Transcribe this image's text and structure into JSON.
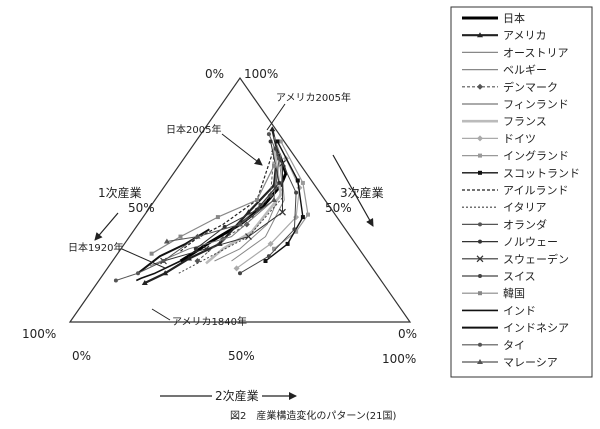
{
  "chart_data": {
    "type": "scatter",
    "subtype": "ternary",
    "caption": "図2　産業構造変化のパターン(21国)",
    "axes": {
      "primary": {
        "label": "1次産業",
        "tick_labels": [
          "0%",
          "50%",
          "100%"
        ]
      },
      "secondary": {
        "label": "2次産業",
        "tick_labels": [
          "0%",
          "50%",
          "100%"
        ]
      },
      "tertiary": {
        "label": "3次産業",
        "tick_labels": [
          "0%",
          "50%",
          "100%"
        ]
      }
    },
    "legend": {
      "placement": "right",
      "entries": [
        "日本",
        "アメリカ",
        "オーストリア",
        "ベルギー",
        "デンマーク",
        "フィンランド",
        "フランス",
        "ドイツ",
        "イングランド",
        "スコットランド",
        "アイルランド",
        "イタリア",
        "オランダ",
        "ノルウェー",
        "スウェーデン",
        "スイス",
        "韓国",
        "インド",
        "インドネシア",
        "タイ",
        "マレーシア"
      ]
    },
    "annotations": [
      {
        "text": "アメリカ2005年",
        "primary": 0.01,
        "secondary": 0.2,
        "tertiary": 0.79
      },
      {
        "text": "日本2005年",
        "primary": 0.04,
        "secondary": 0.27,
        "tertiary": 0.69
      },
      {
        "text": "日本1920年",
        "primary": 0.55,
        "secondary": 0.2,
        "tertiary": 0.25
      },
      {
        "text": "アメリカ1840年",
        "primary": 0.7,
        "secondary": 0.14,
        "tertiary": 0.16
      }
    ],
    "series": [
      {
        "name": "日本",
        "points": [
          [
            0.55,
            0.2,
            0.25
          ],
          [
            0.5,
            0.22,
            0.28
          ],
          [
            0.42,
            0.25,
            0.33
          ],
          [
            0.3,
            0.3,
            0.4
          ],
          [
            0.2,
            0.33,
            0.47
          ],
          [
            0.1,
            0.34,
            0.56
          ],
          [
            0.06,
            0.33,
            0.61
          ],
          [
            0.04,
            0.27,
            0.69
          ]
        ]
      },
      {
        "name": "アメリカ",
        "points": [
          [
            0.7,
            0.14,
            0.16
          ],
          [
            0.62,
            0.18,
            0.2
          ],
          [
            0.52,
            0.22,
            0.26
          ],
          [
            0.4,
            0.28,
            0.32
          ],
          [
            0.25,
            0.3,
            0.45
          ],
          [
            0.12,
            0.32,
            0.56
          ],
          [
            0.04,
            0.26,
            0.7
          ],
          [
            0.01,
            0.2,
            0.79
          ]
        ]
      },
      {
        "name": "オーストリア",
        "points": [
          [
            0.45,
            0.3,
            0.25
          ],
          [
            0.35,
            0.35,
            0.3
          ],
          [
            0.22,
            0.38,
            0.4
          ],
          [
            0.1,
            0.35,
            0.55
          ],
          [
            0.05,
            0.28,
            0.67
          ]
        ]
      },
      {
        "name": "ベルギー",
        "points": [
          [
            0.4,
            0.35,
            0.25
          ],
          [
            0.25,
            0.4,
            0.35
          ],
          [
            0.12,
            0.38,
            0.5
          ],
          [
            0.04,
            0.28,
            0.68
          ],
          [
            0.02,
            0.22,
            0.76
          ]
        ]
      },
      {
        "name": "デンマーク",
        "points": [
          [
            0.5,
            0.25,
            0.25
          ],
          [
            0.38,
            0.28,
            0.34
          ],
          [
            0.28,
            0.32,
            0.4
          ],
          [
            0.15,
            0.33,
            0.52
          ],
          [
            0.05,
            0.25,
            0.7
          ]
        ]
      },
      {
        "name": "フィンランド",
        "points": [
          [
            0.65,
            0.12,
            0.23
          ],
          [
            0.5,
            0.2,
            0.3
          ],
          [
            0.35,
            0.3,
            0.35
          ],
          [
            0.15,
            0.35,
            0.5
          ],
          [
            0.05,
            0.27,
            0.68
          ]
        ]
      },
      {
        "name": "フランス",
        "points": [
          [
            0.48,
            0.28,
            0.24
          ],
          [
            0.4,
            0.3,
            0.3
          ],
          [
            0.28,
            0.35,
            0.37
          ],
          [
            0.12,
            0.36,
            0.52
          ],
          [
            0.04,
            0.24,
            0.72
          ]
        ]
      },
      {
        "name": "ドイツ",
        "points": [
          [
            0.4,
            0.38,
            0.22
          ],
          [
            0.25,
            0.43,
            0.32
          ],
          [
            0.12,
            0.45,
            0.43
          ],
          [
            0.05,
            0.4,
            0.55
          ],
          [
            0.03,
            0.3,
            0.67
          ]
        ]
      },
      {
        "name": "イングランド",
        "points": [
          [
            0.25,
            0.45,
            0.3
          ],
          [
            0.15,
            0.48,
            0.37
          ],
          [
            0.08,
            0.48,
            0.44
          ],
          [
            0.03,
            0.4,
            0.57
          ],
          [
            0.01,
            0.25,
            0.74
          ]
        ]
      },
      {
        "name": "スコットランド",
        "points": [
          [
            0.3,
            0.45,
            0.25
          ],
          [
            0.2,
            0.48,
            0.32
          ],
          [
            0.1,
            0.47,
            0.43
          ],
          [
            0.04,
            0.38,
            0.58
          ],
          [
            0.02,
            0.24,
            0.74
          ]
        ]
      },
      {
        "name": "アイルランド",
        "points": [
          [
            0.53,
            0.18,
            0.29
          ],
          [
            0.46,
            0.2,
            0.34
          ],
          [
            0.35,
            0.25,
            0.4
          ],
          [
            0.2,
            0.3,
            0.5
          ],
          [
            0.06,
            0.25,
            0.69
          ]
        ]
      },
      {
        "name": "イタリア",
        "points": [
          [
            0.58,
            0.22,
            0.2
          ],
          [
            0.45,
            0.28,
            0.27
          ],
          [
            0.3,
            0.35,
            0.35
          ],
          [
            0.12,
            0.37,
            0.51
          ],
          [
            0.05,
            0.3,
            0.65
          ]
        ]
      },
      {
        "name": "オランダ",
        "points": [
          [
            0.3,
            0.3,
            0.4
          ],
          [
            0.2,
            0.32,
            0.48
          ],
          [
            0.12,
            0.33,
            0.55
          ],
          [
            0.05,
            0.28,
            0.67
          ],
          [
            0.03,
            0.2,
            0.77
          ]
        ]
      },
      {
        "name": "ノルウェー",
        "points": [
          [
            0.48,
            0.22,
            0.3
          ],
          [
            0.35,
            0.26,
            0.39
          ],
          [
            0.22,
            0.32,
            0.46
          ],
          [
            0.1,
            0.33,
            0.57
          ],
          [
            0.04,
            0.22,
            0.74
          ]
        ]
      },
      {
        "name": "スウェーデン",
        "points": [
          [
            0.6,
            0.15,
            0.25
          ],
          [
            0.45,
            0.25,
            0.3
          ],
          [
            0.3,
            0.35,
            0.35
          ],
          [
            0.15,
            0.4,
            0.45
          ],
          [
            0.05,
            0.3,
            0.65
          ]
        ]
      },
      {
        "name": "スイス",
        "points": [
          [
            0.4,
            0.4,
            0.2
          ],
          [
            0.28,
            0.45,
            0.27
          ],
          [
            0.15,
            0.47,
            0.38
          ],
          [
            0.07,
            0.4,
            0.53
          ],
          [
            0.04,
            0.25,
            0.71
          ]
        ]
      },
      {
        "name": "韓国",
        "points": [
          [
            0.62,
            0.1,
            0.28
          ],
          [
            0.5,
            0.15,
            0.35
          ],
          [
            0.35,
            0.22,
            0.43
          ],
          [
            0.2,
            0.3,
            0.5
          ],
          [
            0.08,
            0.28,
            0.64
          ]
        ]
      },
      {
        "name": "インド",
        "points": [
          [
            0.72,
            0.11,
            0.17
          ],
          [
            0.7,
            0.12,
            0.18
          ],
          [
            0.65,
            0.15,
            0.2
          ],
          [
            0.55,
            0.2,
            0.25
          ]
        ]
      },
      {
        "name": "インドネシア",
        "points": [
          [
            0.7,
            0.1,
            0.2
          ],
          [
            0.6,
            0.13,
            0.27
          ],
          [
            0.5,
            0.18,
            0.32
          ],
          [
            0.4,
            0.22,
            0.38
          ]
        ]
      },
      {
        "name": "タイ",
        "points": [
          [
            0.78,
            0.05,
            0.17
          ],
          [
            0.7,
            0.1,
            0.2
          ],
          [
            0.6,
            0.15,
            0.25
          ],
          [
            0.45,
            0.2,
            0.35
          ]
        ]
      },
      {
        "name": "マレーシア",
        "points": [
          [
            0.55,
            0.12,
            0.33
          ],
          [
            0.45,
            0.2,
            0.35
          ],
          [
            0.3,
            0.3,
            0.4
          ],
          [
            0.15,
            0.35,
            0.5
          ]
        ]
      }
    ]
  }
}
